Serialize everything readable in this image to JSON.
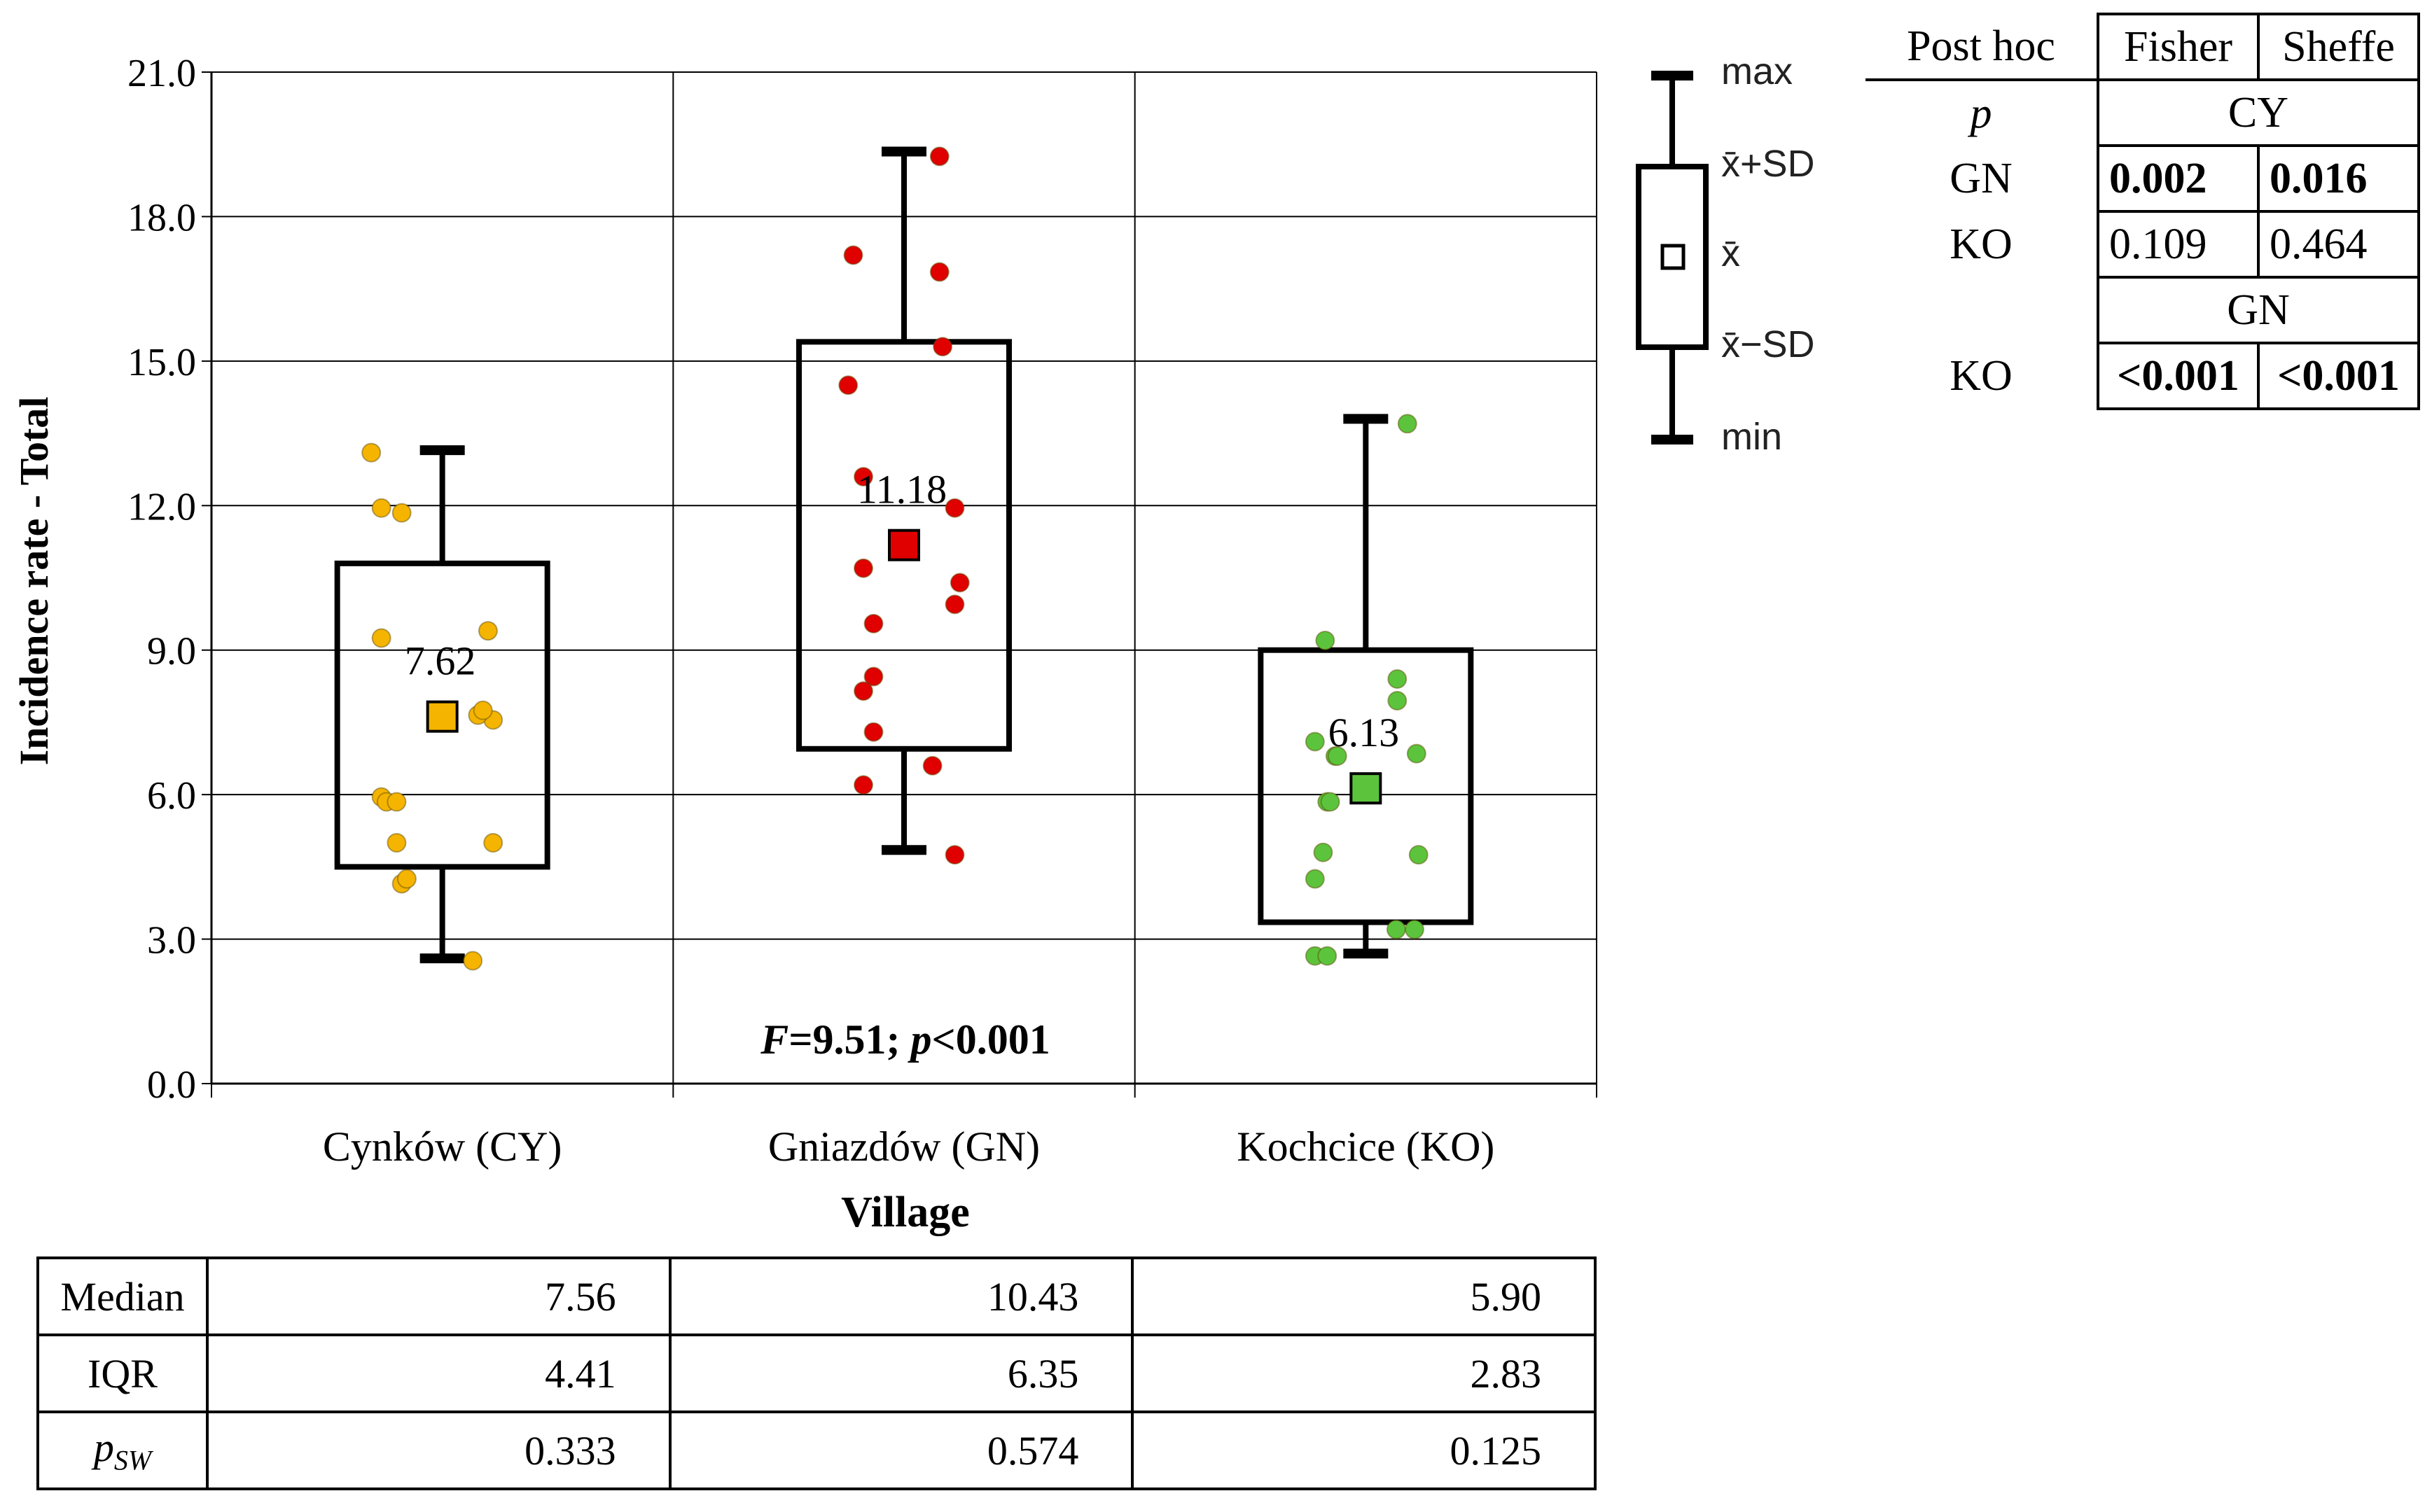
{
  "chart_data": {
    "type": "box",
    "ylabel": "Incidence rate - Total",
    "xlabel": "Village",
    "ylim": [
      0,
      21
    ],
    "yticks": [
      "0.0",
      "3.0",
      "6.0",
      "9.0",
      "12.0",
      "15.0",
      "18.0",
      "21.0"
    ],
    "annotation_f": "F",
    "annotation_rest": "=9.51; ",
    "annotation_p": "p",
    "annotation_end": "<0.001",
    "groups": [
      {
        "name": "Cynków (CY)",
        "color": "#f5b400",
        "mean": 7.62,
        "mean_label": "7.62",
        "sd_low": 4.5,
        "sd_high": 10.8,
        "min": 2.6,
        "max": 13.15,
        "points": [
          [
            -0.7,
            13.1
          ],
          [
            -0.6,
            11.95
          ],
          [
            -0.4,
            11.85
          ],
          [
            -0.6,
            9.25
          ],
          [
            -0.6,
            5.95
          ],
          [
            -0.55,
            5.85
          ],
          [
            -0.45,
            5.0
          ],
          [
            -0.4,
            4.15
          ],
          [
            -0.35,
            4.25
          ],
          [
            -0.45,
            5.85
          ],
          [
            0.45,
            9.4
          ],
          [
            0.5,
            7.55
          ],
          [
            0.35,
            7.65
          ],
          [
            0.4,
            7.75
          ],
          [
            0.5,
            5.0
          ],
          [
            0.3,
            2.55
          ]
        ]
      },
      {
        "name": "Gniazdów (GN)",
        "color": "#e00000",
        "mean": 11.18,
        "mean_label": "11.18",
        "sd_low": 6.95,
        "sd_high": 15.4,
        "min": 4.85,
        "max": 19.35,
        "points": [
          [
            -0.5,
            17.2
          ],
          [
            -0.55,
            14.5
          ],
          [
            -0.4,
            12.6
          ],
          [
            -0.4,
            10.7
          ],
          [
            -0.3,
            9.55
          ],
          [
            -0.3,
            8.45
          ],
          [
            -0.4,
            8.15
          ],
          [
            -0.3,
            7.3
          ],
          [
            -0.4,
            6.2
          ],
          [
            0.35,
            19.25
          ],
          [
            0.35,
            16.85
          ],
          [
            0.38,
            15.3
          ],
          [
            0.5,
            11.95
          ],
          [
            0.55,
            10.4
          ],
          [
            0.5,
            9.95
          ],
          [
            0.28,
            6.6
          ],
          [
            0.5,
            4.75
          ]
        ]
      },
      {
        "name": "Kochcice (KO)",
        "color": "#5cc43c",
        "mean": 6.13,
        "mean_label": "6.13",
        "sd_low": 3.35,
        "sd_high": 9.0,
        "min": 2.7,
        "max": 13.8,
        "points": [
          [
            -0.4,
            9.2
          ],
          [
            -0.5,
            7.1
          ],
          [
            -0.3,
            6.8
          ],
          [
            -0.28,
            6.8
          ],
          [
            -0.38,
            5.85
          ],
          [
            -0.35,
            5.85
          ],
          [
            -0.42,
            4.8
          ],
          [
            -0.5,
            4.25
          ],
          [
            -0.5,
            2.65
          ],
          [
            -0.38,
            2.65
          ],
          [
            0.41,
            13.7
          ],
          [
            0.31,
            8.4
          ],
          [
            0.31,
            7.95
          ],
          [
            0.5,
            6.85
          ],
          [
            0.52,
            4.75
          ],
          [
            0.3,
            3.2
          ],
          [
            0.48,
            3.2
          ]
        ]
      }
    ]
  },
  "legend": {
    "max": "max",
    "mean_plus_sd": "x̄+SD",
    "mean": "x̄",
    "mean_minus_sd": "x̄−SD",
    "min": "min"
  },
  "stats_table": {
    "rows": [
      {
        "label": "Median",
        "values": [
          "7.56",
          "10.43",
          "5.90"
        ]
      },
      {
        "label": "IQR",
        "values": [
          "4.41",
          "6.35",
          "2.83"
        ]
      },
      {
        "label_main": "p",
        "label_sub": "SW",
        "values": [
          "0.333",
          "0.574",
          "0.125"
        ]
      }
    ]
  },
  "posthoc_table": {
    "title": "Post hoc",
    "col1": "Fisher",
    "col2": "Sheffe",
    "p_label": "p",
    "group1": "CY",
    "group2": "GN",
    "rows": [
      {
        "label": "GN",
        "fisher": "0.002",
        "sheffe": "0.016"
      },
      {
        "label": "KO",
        "fisher": "0.109",
        "sheffe": "0.464"
      },
      {
        "label": "KO",
        "fisher": "<0.001",
        "sheffe": "<0.001"
      }
    ]
  }
}
